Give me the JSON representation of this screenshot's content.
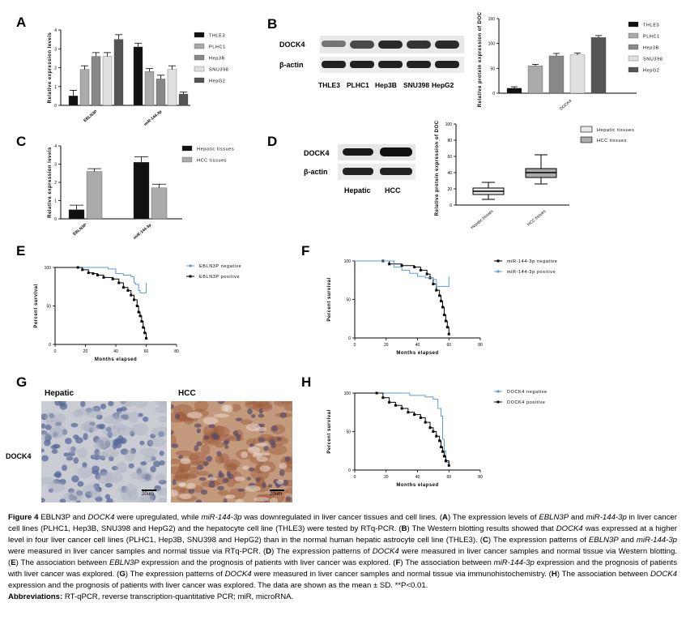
{
  "panels": {
    "A": {
      "letter": "A",
      "ylabel": "Relative expression levels",
      "chart_data": {
        "type": "bar",
        "categories": [
          "EBLN3P",
          "miR-144-3p"
        ],
        "series": [
          {
            "name": "THLE3",
            "color": "#111111",
            "values": [
              0.5,
              3.1
            ]
          },
          {
            "name": "PLHC1",
            "color": "#aaaaaa",
            "values": [
              1.9,
              1.8
            ]
          },
          {
            "name": "Hep3B",
            "color": "#888888",
            "values": [
              2.6,
              1.4
            ]
          },
          {
            "name": "SNU398",
            "color": "#e0e0e0",
            "values": [
              2.6,
              1.9
            ]
          },
          {
            "name": "HepG2",
            "color": "#555555",
            "values": [
              3.5,
              0.6
            ]
          }
        ],
        "errors": [
          [
            0.3,
            0.2
          ],
          [
            0.2,
            0.15
          ],
          [
            0.2,
            0.2
          ],
          [
            0.2,
            0.2
          ],
          [
            0.25,
            0.1
          ]
        ],
        "ylim": [
          0,
          4
        ],
        "yticks": [
          "0",
          "1",
          "2",
          "3",
          "4"
        ]
      }
    },
    "B": {
      "letter": "B",
      "wb_labels": [
        "DOCK4",
        "β-actin"
      ],
      "lanes": [
        "THLE3",
        "PLHC1",
        "Hep3B",
        "SNU398",
        "HepG2"
      ],
      "ylabel": "Relative protein expression of DOCK4",
      "chart_data": {
        "type": "bar",
        "categories": [
          "THLE3",
          "PLHC1",
          "Hep3B",
          "SNU398",
          "HepG2"
        ],
        "xlabel": "DOCK4",
        "values": [
          10,
          55,
          75,
          77,
          112
        ],
        "errors": [
          3,
          3,
          5,
          4,
          4
        ],
        "colors": [
          "#111111",
          "#aaaaaa",
          "#888888",
          "#e0e0e0",
          "#555555"
        ],
        "ylim": [
          0,
          150
        ],
        "yticks": [
          "0",
          "50",
          "100",
          "150"
        ]
      }
    },
    "C": {
      "letter": "C",
      "ylabel": "Relative expression levels",
      "chart_data": {
        "type": "bar",
        "categories": [
          "EBLN3P",
          "miR-144-3p"
        ],
        "series": [
          {
            "name": "Hepatic tissues",
            "color": "#111111",
            "values": [
              0.5,
              3.1
            ]
          },
          {
            "name": "HCC tissues",
            "color": "#aaaaaa",
            "values": [
              2.6,
              1.7
            ]
          }
        ],
        "errors": [
          [
            0.25,
            0.3
          ],
          [
            0.15,
            0.2
          ]
        ],
        "ylim": [
          0,
          4
        ],
        "yticks": [
          "0",
          "1",
          "2",
          "3",
          "4"
        ]
      }
    },
    "D": {
      "letter": "D",
      "wb_labels": [
        "DOCK4",
        "β-actin"
      ],
      "lanes": [
        "Hepatic",
        "HCC"
      ],
      "ylabel": "Relative protein expression of DOCK4",
      "chart_data": {
        "type": "box",
        "categories": [
          "Hepatic tissues",
          "HCC tissues"
        ],
        "colors": [
          "#e8e8e8",
          "#aaaaaa"
        ],
        "boxes": [
          {
            "min": 7,
            "q1": 13,
            "median": 17,
            "q3": 21,
            "max": 28
          },
          {
            "min": 26,
            "q1": 34,
            "median": 40,
            "q3": 45,
            "max": 62
          }
        ],
        "ylim": [
          0,
          100
        ],
        "yticks": [
          "0",
          "20",
          "40",
          "60",
          "80",
          "100"
        ]
      }
    },
    "E": {
      "letter": "E",
      "ylabel": "Percent survival",
      "xlabel": "Months elapsed",
      "legend": [
        "EBLN3P negative",
        "EBLN3P positive"
      ],
      "chart_data": {
        "type": "line",
        "xlim": [
          0,
          80
        ],
        "ylim": [
          0,
          100
        ],
        "xticks": [
          "0",
          "20",
          "40",
          "60",
          "80"
        ],
        "yticks": [
          "0",
          "50",
          "100"
        ],
        "series": [
          {
            "name": "EBLN3P negative",
            "color": "#5b9bd5",
            "points": [
              [
                0,
                100
              ],
              [
                22,
                100
              ],
              [
                35,
                98
              ],
              [
                40,
                92
              ],
              [
                45,
                90
              ],
              [
                50,
                88
              ],
              [
                52,
                80
              ],
              [
                53,
                78
              ],
              [
                55,
                70
              ],
              [
                56,
                67
              ],
              [
                60,
                67
              ],
              [
                60,
                80
              ]
            ]
          },
          {
            "name": "EBLN3P positive",
            "color": "#000000",
            "points": [
              [
                0,
                100
              ],
              [
                15,
                100
              ],
              [
                18,
                97
              ],
              [
                22,
                93
              ],
              [
                25,
                92
              ],
              [
                28,
                90
              ],
              [
                32,
                87
              ],
              [
                38,
                85
              ],
              [
                42,
                80
              ],
              [
                45,
                74
              ],
              [
                48,
                70
              ],
              [
                50,
                64
              ],
              [
                52,
                58
              ],
              [
                54,
                50
              ],
              [
                55,
                42
              ],
              [
                56,
                37
              ],
              [
                57,
                30
              ],
              [
                58,
                22
              ],
              [
                59,
                15
              ],
              [
                60,
                8
              ]
            ]
          }
        ]
      }
    },
    "F": {
      "letter": "F",
      "ylabel": "Percent survival",
      "xlabel": "Months elapsed",
      "legend": [
        "miR-144-3p negative",
        "miR-144-3p positive"
      ],
      "chart_data": {
        "type": "line",
        "xlim": [
          0,
          80
        ],
        "ylim": [
          0,
          100
        ],
        "xticks": [
          "0",
          "20",
          "40",
          "60",
          "80"
        ],
        "yticks": [
          "0",
          "50",
          "100"
        ],
        "series": [
          {
            "name": "miR-144-3p negative",
            "color": "#000000",
            "points": [
              [
                0,
                100
              ],
              [
                18,
                100
              ],
              [
                22,
                96
              ],
              [
                30,
                94
              ],
              [
                38,
                92
              ],
              [
                42,
                88
              ],
              [
                46,
                83
              ],
              [
                48,
                78
              ],
              [
                50,
                70
              ],
              [
                52,
                62
              ],
              [
                54,
                55
              ],
              [
                55,
                48
              ],
              [
                56,
                40
              ],
              [
                57,
                30
              ],
              [
                58,
                22
              ],
              [
                59,
                14
              ],
              [
                60,
                5
              ]
            ]
          },
          {
            "name": "miR-144-3p positive",
            "color": "#5b9bd5",
            "points": [
              [
                0,
                100
              ],
              [
                16,
                100
              ],
              [
                25,
                92
              ],
              [
                30,
                88
              ],
              [
                35,
                84
              ],
              [
                40,
                80
              ],
              [
                45,
                78
              ],
              [
                50,
                76
              ],
              [
                52,
                67
              ],
              [
                56,
                67
              ],
              [
                60,
                67
              ],
              [
                60,
                80
              ]
            ]
          }
        ]
      }
    },
    "G": {
      "letter": "G",
      "row_label": "DOCK4",
      "columns": [
        "Hepatic",
        "HCC"
      ],
      "scale_bar": "20um"
    },
    "H": {
      "letter": "H",
      "ylabel": "Percent survival",
      "xlabel": "Months elapsed",
      "legend": [
        "DOCK4 negative",
        "DOCK4 positive"
      ],
      "chart_data": {
        "type": "line",
        "xlim": [
          0,
          80
        ],
        "ylim": [
          0,
          100
        ],
        "xticks": [
          "0",
          "20",
          "40",
          "60",
          "80"
        ],
        "yticks": [
          "0",
          "50",
          "100"
        ],
        "series": [
          {
            "name": "DOCK4 negative",
            "color": "#5b9bd5",
            "points": [
              [
                0,
                100
              ],
              [
                30,
                100
              ],
              [
                35,
                97
              ],
              [
                45,
                95
              ],
              [
                50,
                92
              ],
              [
                53,
                80
              ],
              [
                55,
                70
              ],
              [
                56,
                40
              ],
              [
                57,
                25
              ],
              [
                58,
                10
              ],
              [
                60,
                5
              ]
            ]
          },
          {
            "name": "DOCK4 positive",
            "color": "#000000",
            "points": [
              [
                0,
                100
              ],
              [
                14,
                100
              ],
              [
                18,
                94
              ],
              [
                22,
                88
              ],
              [
                26,
                84
              ],
              [
                30,
                80
              ],
              [
                34,
                75
              ],
              [
                38,
                72
              ],
              [
                42,
                68
              ],
              [
                45,
                62
              ],
              [
                48,
                55
              ],
              [
                50,
                50
              ],
              [
                52,
                44
              ],
              [
                54,
                38
              ],
              [
                55,
                30
              ],
              [
                56,
                24
              ],
              [
                57,
                18
              ],
              [
                58,
                12
              ],
              [
                60,
                6
              ]
            ]
          }
        ]
      }
    }
  },
  "caption": {
    "fig_label": "Figure 4",
    "text1": " EBLN3P and ",
    "i1": "DOCK4",
    "text2": " were upregulated, while ",
    "i2": "miR-144-3p",
    "text3": " was downregulated in liver cancer tissues and cell lines. (",
    "bA": "A",
    "text4": ") The expression levels of ",
    "i3": "EBLN3P",
    "text5": " and ",
    "i4": "miR-144-3p",
    "text6": " in liver cancer cell lines (PLHC1, Hep3B, SNU398 and HepG2) and the hepatocyte cell line (THLE3) were tested by RTq-PCR. (",
    "bB": "B",
    "text7": ") The Western blotting results showed that ",
    "i5": "DOCK4",
    "text8": " was expressed at a higher level in four liver cancer cell lines (PLHC1, Hep3B, SNU398 and HepG2) than in the normal human hepatic astrocyte cell line (THLE3). (",
    "bC": "C",
    "text9": ") The expression patterns of ",
    "i6": "EBLN3P",
    "text10": " and ",
    "i7": "miR-144-3p",
    "text11": " were measured in liver cancer samples and normal tissue via RTq-PCR. (",
    "bD": "D",
    "text12": ") The expression patterns of ",
    "i8": "DOCK4",
    "text13": " were measured in liver cancer samples and normal tissue via Western blotting. (",
    "bE": "E",
    "text14": ") The association between ",
    "i9": "EBLN3P",
    "text15": " expression and the prognosis of patients with liver cancer was explored. (",
    "bF": "F",
    "text16": ") The association between ",
    "i10": "miR-144-3p",
    "text17": " expression and the prognosis of patients with liver cancer was explored. (",
    "bG": "G",
    "text18": ") The expression patterns of ",
    "i11": "DOCK4",
    "text19": " were measured in liver cancer samples and normal tissue via immunohistochemistry. (",
    "bH": "H",
    "text20": ") The association between ",
    "i12": "DOCK4",
    "text21": " expression and the prognosis of patients with liver cancer was explored. The data are shown as the mean ± SD. **P<0.01.",
    "abbr_label": "Abbreviations:",
    "abbr_text": " RT-qPCR, reverse transcription-quantitative PCR; miR, microRNA."
  }
}
